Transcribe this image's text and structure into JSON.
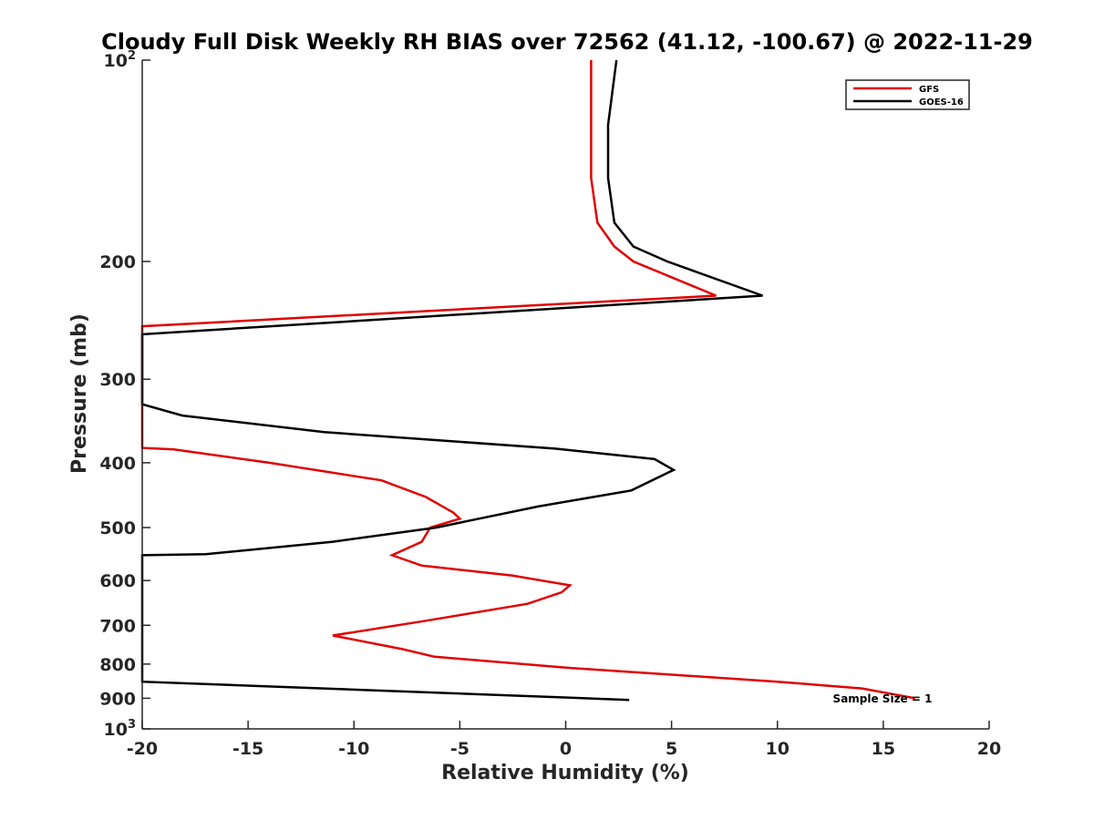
{
  "chart_data": {
    "type": "line",
    "title": "Cloudy Full Disk Weekly RH BIAS over 72562 (41.12, -100.67) @ 2022-11-29",
    "xlabel": "Relative Humidity (%)",
    "ylabel": "Pressure (mb)",
    "xlim": [
      -20,
      20
    ],
    "ylim": [
      100,
      1000
    ],
    "yscale": "log",
    "y_reversed": true,
    "grid": false,
    "legend_position": "top-right",
    "x_ticks": [
      -20,
      -15,
      -10,
      -5,
      0,
      5,
      10,
      15,
      20
    ],
    "x_tick_labels": [
      "-20",
      "-15",
      "-10",
      "-5",
      "0",
      "5",
      "10",
      "15",
      "20"
    ],
    "y_ticks": [
      100,
      200,
      300,
      400,
      500,
      600,
      700,
      800,
      900,
      1000
    ],
    "y_tick_labels": [
      {
        "base": "10",
        "exp": "2"
      },
      {
        "text": "200"
      },
      {
        "text": "300"
      },
      {
        "text": "400"
      },
      {
        "text": "500"
      },
      {
        "text": "600"
      },
      {
        "text": "700"
      },
      {
        "text": "800"
      },
      {
        "text": "900"
      },
      {
        "base": "10",
        "exp": "3"
      }
    ],
    "series": [
      {
        "name": "GFS",
        "color": "#e00000",
        "points": [
          [
            1.2,
            100
          ],
          [
            1.2,
            125
          ],
          [
            1.2,
            150
          ],
          [
            1.5,
            175
          ],
          [
            2.3,
            190
          ],
          [
            3.2,
            200
          ],
          [
            7.1,
            225
          ],
          [
            -20,
            250
          ],
          [
            -20,
            380
          ],
          [
            -18.5,
            382
          ],
          [
            -14,
            400
          ],
          [
            -8.7,
            425
          ],
          [
            -6.6,
            450
          ],
          [
            -5.3,
            475
          ],
          [
            -5,
            485
          ],
          [
            -6.4,
            500
          ],
          [
            -6.8,
            525
          ],
          [
            -8.2,
            550
          ],
          [
            -6.8,
            570
          ],
          [
            -2.5,
            590
          ],
          [
            0.2,
            610
          ],
          [
            -0.2,
            625
          ],
          [
            -1.8,
            650
          ],
          [
            -6.7,
            690
          ],
          [
            -11,
            725
          ],
          [
            -7.7,
            760
          ],
          [
            -6.2,
            780
          ],
          [
            0,
            810
          ],
          [
            10,
            850
          ],
          [
            14,
            870
          ],
          [
            16.5,
            900
          ]
        ]
      },
      {
        "name": "GOES-16",
        "color": "#000000",
        "points": [
          [
            2.4,
            100
          ],
          [
            2,
            125
          ],
          [
            2,
            150
          ],
          [
            2.3,
            175
          ],
          [
            3.2,
            190
          ],
          [
            4.8,
            200
          ],
          [
            9.3,
            225
          ],
          [
            -20,
            257
          ],
          [
            -20,
            327
          ],
          [
            -18.1,
            340
          ],
          [
            -11.4,
            360
          ],
          [
            -0.5,
            381
          ],
          [
            4.2,
            395
          ],
          [
            5.1,
            410
          ],
          [
            3.1,
            440
          ],
          [
            -1.3,
            465
          ],
          [
            -4.1,
            485
          ],
          [
            -6.1,
            500
          ],
          [
            -11,
            525
          ],
          [
            -17,
            548
          ],
          [
            -20,
            550
          ],
          [
            -20,
            850
          ],
          [
            3,
            905
          ]
        ]
      }
    ],
    "annotation": "Sample Size = 1"
  }
}
